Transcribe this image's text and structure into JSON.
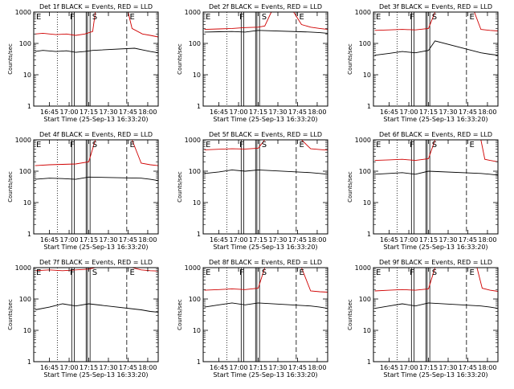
{
  "figure": {
    "rows": 3,
    "cols": 3,
    "colors": {
      "events": "#000000",
      "lld": "#d00000",
      "axes": "#000000",
      "background": "#ffffff"
    }
  },
  "chart_data": [
    {
      "type": "line",
      "title": "Det 1f BLACK = Events, RED = LLD",
      "xlabel": "Start Time (25-Sep-13 16:33:20)",
      "ylabel": "Counts/sec",
      "x_ticks": [
        "16:45",
        "17:00",
        "17:15",
        "17:30",
        "17:45",
        "18:00"
      ],
      "y_ticks": [
        "1",
        "10",
        "100",
        "1000"
      ],
      "xlim": [
        "16:33",
        "18:08"
      ],
      "ylim": [
        1,
        1000
      ],
      "y_scale": "log",
      "series": [
        {
          "values": [
            [
              "16:34",
              55
            ],
            [
              "16:40",
              60
            ],
            [
              "16:50",
              55
            ],
            [
              "16:58",
              58
            ],
            [
              "17:05",
              52
            ],
            [
              "17:12",
              55
            ],
            [
              "17:18",
              60
            ],
            [
              "17:50",
              70
            ],
            [
              "17:56",
              62
            ],
            [
              "18:02",
              55
            ],
            [
              "18:08",
              50
            ]
          ]
        },
        {
          "values": [
            [
              "16:34",
              200
            ],
            [
              "16:40",
              210
            ],
            [
              "16:50",
              190
            ],
            [
              "16:58",
              200
            ],
            [
              "17:05",
              180
            ],
            [
              "17:12",
              200
            ],
            [
              "17:18",
              240
            ],
            [
              "17:20",
              1000
            ],
            [
              "17:45",
              1000
            ],
            [
              "17:48",
              300
            ],
            [
              "17:56",
              200
            ],
            [
              "18:02",
              180
            ],
            [
              "18:08",
              160
            ]
          ]
        }
      ],
      "annotations": [
        "E",
        "F",
        "S",
        "E"
      ]
    },
    {
      "type": "line",
      "title": "Det 2f BLACK = Events, RED = LLD",
      "xlabel": "Start Time (25-Sep-13 16:33:20)",
      "ylabel": "Counts/sec",
      "x_ticks": [
        "16:45",
        "17:00",
        "17:15",
        "17:30",
        "17:45",
        "18:00"
      ],
      "y_ticks": [
        "1",
        "10",
        "100",
        "1000"
      ],
      "xlim": [
        "16:33",
        "18:08"
      ],
      "ylim": [
        1,
        1000
      ],
      "y_scale": "log",
      "series": [
        {
          "values": [
            [
              "16:34",
              230
            ],
            [
              "16:45",
              235
            ],
            [
              "16:55",
              240
            ],
            [
              "17:05",
              230
            ],
            [
              "17:15",
              260
            ],
            [
              "17:55",
              230
            ],
            [
              "18:02",
              220
            ],
            [
              "18:08",
              210
            ]
          ]
        },
        {
          "values": [
            [
              "16:34",
              280
            ],
            [
              "16:45",
              290
            ],
            [
              "16:55",
              300
            ],
            [
              "17:05",
              320
            ],
            [
              "17:15",
              330
            ],
            [
              "17:20",
              360
            ],
            [
              "17:25",
              1000
            ],
            [
              "17:42",
              1000
            ],
            [
              "17:48",
              400
            ],
            [
              "17:55",
              330
            ],
            [
              "18:02",
              300
            ],
            [
              "18:08",
              280
            ]
          ]
        }
      ],
      "annotations": [
        "E",
        "F",
        "S",
        "E"
      ]
    },
    {
      "type": "line",
      "title": "Det 3f BLACK = Events, RED = LLD",
      "xlabel": "Start Time (25-Sep-13 16:33:20)",
      "ylabel": "Counts/sec",
      "x_ticks": [
        "16:45",
        "17:00",
        "17:15",
        "17:30",
        "17:45",
        "18:00"
      ],
      "y_ticks": [
        "1",
        "10",
        "100",
        "1000"
      ],
      "xlim": [
        "16:33",
        "18:08"
      ],
      "ylim": [
        1,
        1000
      ],
      "y_scale": "log",
      "series": [
        {
          "values": [
            [
              "16:34",
              42
            ],
            [
              "16:45",
              48
            ],
            [
              "16:55",
              55
            ],
            [
              "17:05",
              50
            ],
            [
              "17:15",
              60
            ],
            [
              "17:20",
              120
            ],
            [
              "17:55",
              50
            ],
            [
              "18:02",
              45
            ],
            [
              "18:08",
              42
            ]
          ]
        },
        {
          "values": [
            [
              "16:34",
              260
            ],
            [
              "16:45",
              270
            ],
            [
              "16:55",
              280
            ],
            [
              "17:05",
              270
            ],
            [
              "17:15",
              300
            ],
            [
              "17:20",
              1000
            ],
            [
              "17:50",
              1000
            ],
            [
              "17:55",
              280
            ],
            [
              "18:02",
              260
            ],
            [
              "18:08",
              250
            ]
          ]
        }
      ],
      "annotations": [
        "E",
        "F",
        "S",
        "E"
      ]
    },
    {
      "type": "line",
      "title": "Det 4f BLACK = Events, RED = LLD",
      "xlabel": "Start Time (25-Sep-13 16:33:20)",
      "ylabel": "Counts/sec",
      "x_ticks": [
        "16:45",
        "17:00",
        "17:15",
        "17:30",
        "17:45",
        "18:00"
      ],
      "y_ticks": [
        "1",
        "10",
        "100",
        "1000"
      ],
      "xlim": [
        "16:33",
        "18:08"
      ],
      "ylim": [
        1,
        1000
      ],
      "y_scale": "log",
      "series": [
        {
          "values": [
            [
              "16:34",
              55
            ],
            [
              "16:45",
              60
            ],
            [
              "16:55",
              58
            ],
            [
              "17:05",
              55
            ],
            [
              "17:15",
              65
            ],
            [
              "17:55",
              60
            ],
            [
              "18:02",
              55
            ],
            [
              "18:08",
              50
            ]
          ]
        },
        {
          "values": [
            [
              "16:34",
              150
            ],
            [
              "16:45",
              160
            ],
            [
              "16:55",
              165
            ],
            [
              "17:05",
              170
            ],
            [
              "17:15",
              200
            ],
            [
              "17:20",
              1000
            ],
            [
              "17:48",
              1000
            ],
            [
              "17:55",
              180
            ],
            [
              "18:02",
              160
            ],
            [
              "18:08",
              150
            ]
          ]
        }
      ],
      "annotations": [
        "E",
        "F",
        "S",
        "E"
      ]
    },
    {
      "type": "line",
      "title": "Det 5f BLACK = Events, RED = LLD",
      "xlabel": "Start Time (25-Sep-13 16:33:20)",
      "ylabel": "Counts/sec",
      "x_ticks": [
        "16:45",
        "17:00",
        "17:15",
        "17:30",
        "17:45",
        "18:00"
      ],
      "y_ticks": [
        "1",
        "10",
        "100",
        "1000"
      ],
      "xlim": [
        "16:33",
        "18:08"
      ],
      "ylim": [
        1,
        1000
      ],
      "y_scale": "log",
      "series": [
        {
          "values": [
            [
              "16:34",
              85
            ],
            [
              "16:45",
              95
            ],
            [
              "16:55",
              110
            ],
            [
              "17:05",
              100
            ],
            [
              "17:15",
              110
            ],
            [
              "17:55",
              90
            ],
            [
              "18:02",
              85
            ],
            [
              "18:08",
              80
            ]
          ]
        },
        {
          "values": [
            [
              "16:34",
              480
            ],
            [
              "16:45",
              500
            ],
            [
              "16:55",
              520
            ],
            [
              "17:05",
              510
            ],
            [
              "17:15",
              540
            ],
            [
              "17:20",
              1000
            ],
            [
              "17:48",
              1000
            ],
            [
              "17:55",
              520
            ],
            [
              "18:02",
              490
            ],
            [
              "18:08",
              470
            ]
          ]
        }
      ],
      "annotations": [
        "E",
        "F",
        "S",
        "E"
      ]
    },
    {
      "type": "line",
      "title": "Det 6f BLACK = Events, RED = LLD",
      "xlabel": "Start Time (25-Sep-13 16:33:20)",
      "ylabel": "Counts/sec",
      "x_ticks": [
        "16:45",
        "17:00",
        "17:15",
        "17:30",
        "17:45",
        "18:00"
      ],
      "y_ticks": [
        "1",
        "10",
        "100",
        "1000"
      ],
      "xlim": [
        "16:33",
        "18:08"
      ],
      "ylim": [
        1,
        1000
      ],
      "y_scale": "log",
      "series": [
        {
          "values": [
            [
              "16:34",
              80
            ],
            [
              "16:45",
              85
            ],
            [
              "16:55",
              90
            ],
            [
              "17:05",
              80
            ],
            [
              "17:15",
              100
            ],
            [
              "17:55",
              85
            ],
            [
              "18:02",
              80
            ],
            [
              "18:08",
              75
            ]
          ]
        },
        {
          "values": [
            [
              "16:34",
              220
            ],
            [
              "16:45",
              230
            ],
            [
              "16:55",
              240
            ],
            [
              "17:05",
              220
            ],
            [
              "17:15",
              250
            ],
            [
              "17:20",
              1000
            ],
            [
              "17:55",
              1000
            ],
            [
              "17:58",
              240
            ],
            [
              "18:02",
              220
            ],
            [
              "18:08",
              200
            ]
          ]
        }
      ],
      "annotations": [
        "E",
        "F",
        "S",
        "E"
      ]
    },
    {
      "type": "line",
      "title": "Det 7f BLACK = Events, RED = LLD",
      "xlabel": "Start Time (25-Sep-13 16:33:20)",
      "ylabel": "Counts/sec",
      "x_ticks": [
        "16:45",
        "17:00",
        "17:15",
        "17:30",
        "17:45",
        "18:00"
      ],
      "y_ticks": [
        "1",
        "10",
        "100",
        "1000"
      ],
      "xlim": [
        "16:33",
        "18:08"
      ],
      "ylim": [
        1,
        1000
      ],
      "y_scale": "log",
      "series": [
        {
          "values": [
            [
              "16:34",
              45
            ],
            [
              "16:45",
              55
            ],
            [
              "16:55",
              70
            ],
            [
              "17:05",
              60
            ],
            [
              "17:15",
              70
            ],
            [
              "17:55",
              45
            ],
            [
              "18:02",
              40
            ],
            [
              "18:08",
              38
            ]
          ]
        },
        {
          "values": [
            [
              "16:34",
              800
            ],
            [
              "16:45",
              850
            ],
            [
              "16:55",
              800
            ],
            [
              "17:05",
              850
            ],
            [
              "17:15",
              900
            ],
            [
              "17:20",
              1000
            ],
            [
              "17:48",
              1000
            ],
            [
              "17:55",
              850
            ],
            [
              "18:02",
              800
            ],
            [
              "18:08",
              780
            ]
          ]
        }
      ],
      "annotations": [
        "E",
        "F",
        "S",
        "E"
      ]
    },
    {
      "type": "line",
      "title": "Det 8f BLACK = Events, RED = LLD",
      "xlabel": "Start Time (25-Sep-13 16:33:20)",
      "ylabel": "Counts/sec",
      "x_ticks": [
        "16:45",
        "17:00",
        "17:15",
        "17:30",
        "17:45",
        "18:00"
      ],
      "y_ticks": [
        "1",
        "10",
        "100",
        "1000"
      ],
      "xlim": [
        "16:33",
        "18:08"
      ],
      "ylim": [
        1,
        1000
      ],
      "y_scale": "log",
      "series": [
        {
          "values": [
            [
              "16:34",
              55
            ],
            [
              "16:45",
              65
            ],
            [
              "16:55",
              75
            ],
            [
              "17:05",
              65
            ],
            [
              "17:15",
              75
            ],
            [
              "17:55",
              60
            ],
            [
              "18:02",
              55
            ],
            [
              "18:08",
              50
            ]
          ]
        },
        {
          "values": [
            [
              "16:34",
              190
            ],
            [
              "16:45",
              200
            ],
            [
              "16:55",
              210
            ],
            [
              "17:05",
              200
            ],
            [
              "17:15",
              220
            ],
            [
              "17:20",
              1000
            ],
            [
              "17:48",
              1000
            ],
            [
              "17:55",
              180
            ],
            [
              "18:02",
              170
            ],
            [
              "18:08",
              165
            ]
          ]
        }
      ],
      "annotations": [
        "E",
        "F",
        "S",
        "E"
      ]
    },
    {
      "type": "line",
      "title": "Det 9f BLACK = Events, RED = LLD",
      "xlabel": "Start Time (25-Sep-13 16:33:20)",
      "ylabel": "Counts/sec",
      "x_ticks": [
        "16:45",
        "17:00",
        "17:15",
        "17:30",
        "17:45",
        "18:00"
      ],
      "y_ticks": [
        "1",
        "10",
        "100",
        "1000"
      ],
      "xlim": [
        "16:33",
        "18:08"
      ],
      "ylim": [
        1,
        1000
      ],
      "y_scale": "log",
      "series": [
        {
          "values": [
            [
              "16:34",
              50
            ],
            [
              "16:45",
              60
            ],
            [
              "16:55",
              70
            ],
            [
              "17:05",
              60
            ],
            [
              "17:15",
              75
            ],
            [
              "17:55",
              60
            ],
            [
              "18:02",
              55
            ],
            [
              "18:08",
              50
            ]
          ]
        },
        {
          "values": [
            [
              "16:34",
              180
            ],
            [
              "16:45",
              190
            ],
            [
              "16:55",
              200
            ],
            [
              "17:05",
              190
            ],
            [
              "17:15",
              210
            ],
            [
              "17:20",
              1000
            ],
            [
              "17:52",
              1000
            ],
            [
              "17:56",
              220
            ],
            [
              "18:02",
              190
            ],
            [
              "18:08",
              175
            ]
          ]
        }
      ],
      "annotations": [
        "E",
        "F",
        "S",
        "E"
      ]
    }
  ]
}
